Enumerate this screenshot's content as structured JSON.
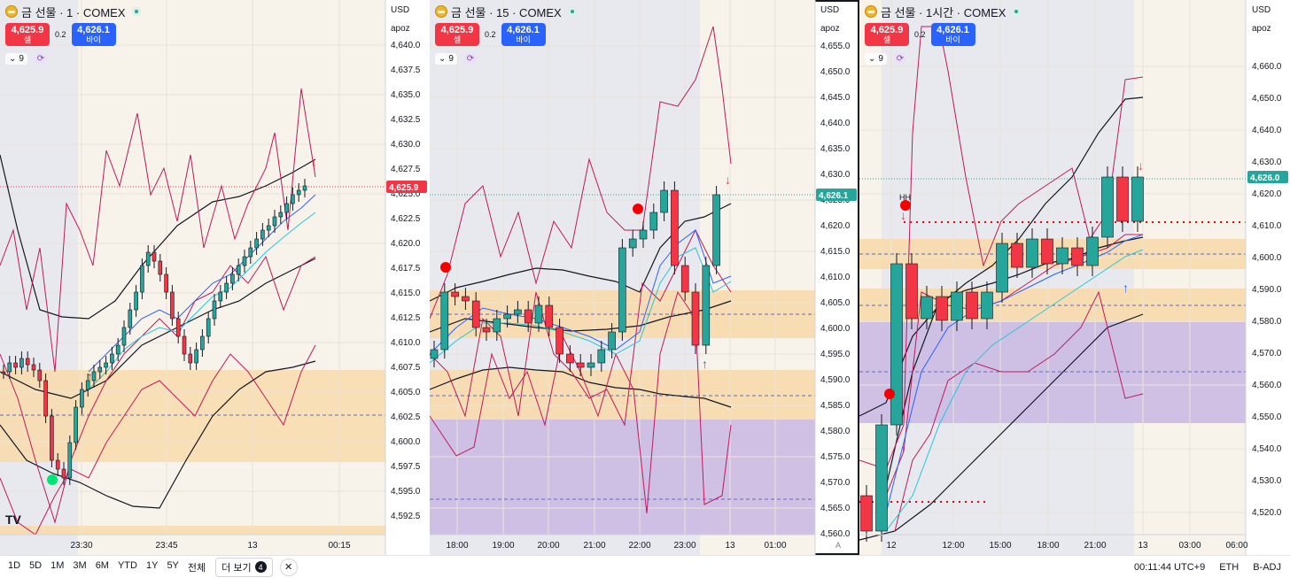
{
  "panes": [
    {
      "title": "금 선물 · 1 · COMEX",
      "sell_price": "4,625.9",
      "sell_label": "셀",
      "spread": "0.2",
      "buy_price": "4,626.1",
      "buy_label": "바이",
      "indicator": "9",
      "currency": "USD",
      "axis_label": "apoz",
      "price_ticks": [
        "4,640.0",
        "4,637.5",
        "4,635.0",
        "4,632.5",
        "4,630.0",
        "4,627.5",
        "4,625.0",
        "4,622.5",
        "4,620.0",
        "4,617.5",
        "4,615.0",
        "4,612.5",
        "4,610.0",
        "4,607.5",
        "4,605.0",
        "4,602.5",
        "4,600.0",
        "4,597.5",
        "4,595.0",
        "4,592.5"
      ],
      "last_price": "4,625.9",
      "time_ticks": [
        "23:30",
        "23:45",
        "13",
        "00:15"
      ],
      "corner": ""
    },
    {
      "title": "금 선물 · 15 · COMEX",
      "sell_price": "4,625.9",
      "sell_label": "셀",
      "spread": "0.2",
      "buy_price": "4,626.1",
      "buy_label": "바이",
      "indicator": "9",
      "currency": "USD",
      "axis_label": "apoz",
      "price_ticks": [
        "4,655.0",
        "4,650.0",
        "4,645.0",
        "4,640.0",
        "4,635.0",
        "4,630.0",
        "4,625.0",
        "4,620.0",
        "4,615.0",
        "4,610.0",
        "4,605.0",
        "4,600.0",
        "4,595.0",
        "4,590.0",
        "4,585.0",
        "4,580.0",
        "4,575.0",
        "4,570.0",
        "4,565.0",
        "4,560.0"
      ],
      "last_price": "4,626.1",
      "time_ticks": [
        "18:00",
        "19:00",
        "20:00",
        "21:00",
        "22:00",
        "23:00",
        "13",
        "01:00"
      ],
      "corner": "A"
    },
    {
      "title": "금 선물 · 1시간 · COMEX",
      "sell_price": "4,625.9",
      "sell_label": "셀",
      "spread": "0.2",
      "buy_price": "4,626.1",
      "buy_label": "바이",
      "indicator": "9",
      "currency": "USD",
      "axis_label": "apoz",
      "price_ticks": [
        "4,660.0",
        "4,650.0",
        "4,640.0",
        "4,630.0",
        "4,620.0",
        "4,610.0",
        "4,600.0",
        "4,590.0",
        "4,580.0",
        "4,570.0",
        "4,560.0",
        "4,550.0",
        "4,540.0",
        "4,530.0",
        "4,520.0"
      ],
      "last_price": "4,626.0",
      "time_ticks": [
        "12",
        "12:00",
        "15:00",
        "18:00",
        "21:00",
        "13",
        "03:00",
        "06:00"
      ],
      "hh_label": "HH",
      "corner": ""
    }
  ],
  "colors": {
    "up": "#26a69a",
    "down": "#f23645",
    "band": "#c2185b",
    "zone": "#f9d9a8",
    "zone2": "#c9b8e3",
    "bg": "#f7f2ea"
  },
  "bottom": {
    "ranges": [
      "1D",
      "5D",
      "1M",
      "3M",
      "6M",
      "YTD",
      "1Y",
      "5Y",
      "전체"
    ],
    "more_label": "더 보기",
    "more_count": "4",
    "close_icon": "✕",
    "time": "00:11:44 UTC+9",
    "session": "ETH",
    "adj": "B-ADJ"
  }
}
